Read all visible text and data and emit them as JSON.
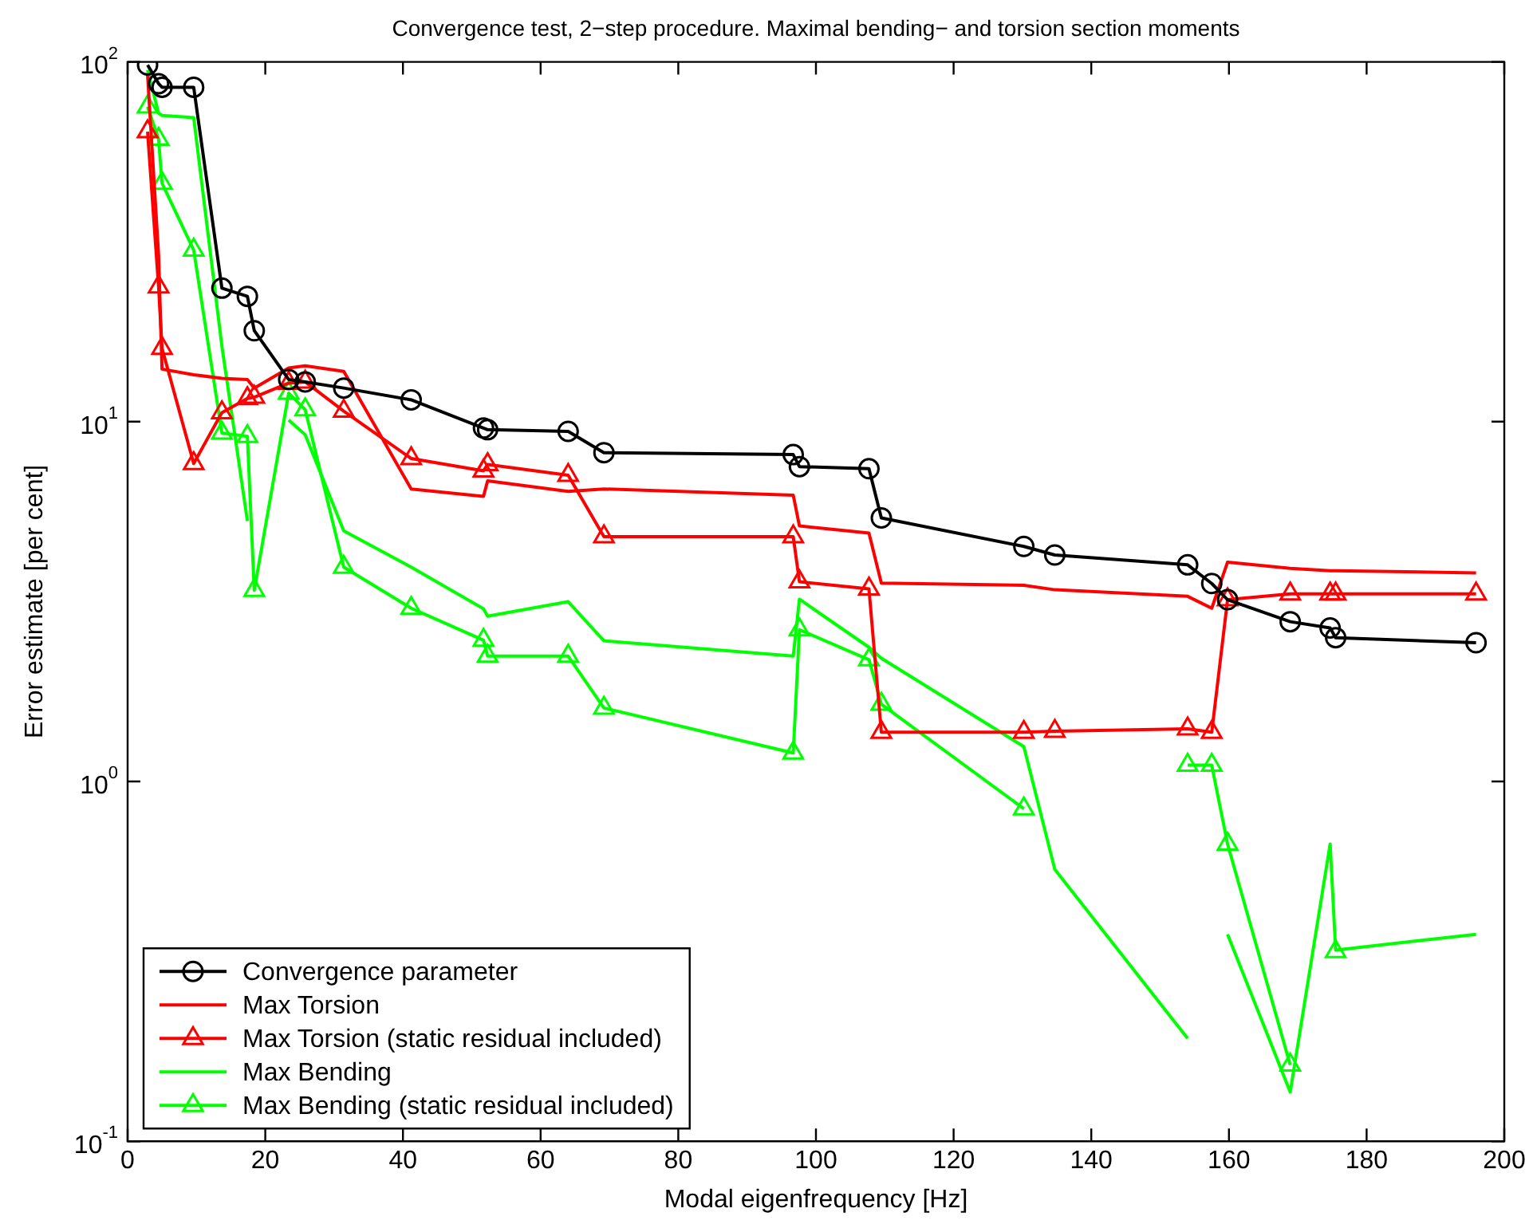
{
  "chart_data": {
    "type": "line",
    "title": "Convergence test, 2−step procedure. Maximal bending− and torsion section moments",
    "xlabel": "Modal eigenfrequency [Hz]",
    "ylabel": "Error estimate [per cent]",
    "x": [
      2.9,
      4.5,
      5.0,
      9.6,
      13.7,
      17.4,
      18.4,
      23.4,
      25.8,
      31.4,
      41.2,
      51.7,
      52.3,
      64.0,
      69.2,
      96.7,
      97.6,
      107.7,
      109.5,
      130.2,
      134.7,
      154.0,
      157.5,
      159.8,
      168.9,
      174.7,
      175.5,
      195.9
    ],
    "series": [
      {
        "name": "Convergence parameter",
        "color": "#000000",
        "marker": "circle",
        "values": [
          98,
          87,
          85,
          85,
          23.5,
          22.3,
          17.9,
          13.1,
          12.9,
          12.4,
          11.5,
          9.6,
          9.5,
          9.4,
          8.2,
          8.1,
          7.5,
          7.4,
          5.4,
          4.5,
          4.26,
          4.0,
          3.55,
          3.2,
          2.78,
          2.67,
          2.51,
          2.43
        ]
      },
      {
        "name": "Max Torsion",
        "color": "#ff0000",
        "marker": "none",
        "values": [
          92,
          29,
          14,
          13.5,
          13.2,
          13.1,
          12.4,
          14.1,
          14.3,
          13.8,
          6.5,
          6.2,
          6.85,
          6.4,
          6.5,
          6.25,
          5.13,
          4.9,
          3.56,
          3.51,
          3.41,
          3.27,
          3.03,
          4.07,
          3.91,
          3.85,
          3.85,
          3.8
        ]
      },
      {
        "name": "Max Torsion (static residual included)",
        "color": "#ff0000",
        "marker": "triangle",
        "values": [
          64,
          23.7,
          16,
          7.65,
          10.6,
          11.6,
          11.7,
          12.8,
          12.9,
          10.7,
          7.9,
          7.3,
          7.6,
          7.1,
          4.79,
          4.79,
          3.59,
          3.43,
          1.37,
          1.37,
          1.38,
          1.4,
          1.37,
          3.2,
          3.32,
          3.32,
          3.32,
          3.32
        ]
      },
      {
        "name": "Max Bending",
        "color": "#00ff00",
        "marker": "none",
        "values": [
          95,
          72,
          71,
          70,
          16.2,
          5.3,
          null,
          10.1,
          9.2,
          4.97,
          3.94,
          3.02,
          2.88,
          3.16,
          2.46,
          2.23,
          3.21,
          2.36,
          2.2,
          1.25,
          0.57,
          0.193,
          null,
          0.376,
          0.137,
          0.67,
          0.34,
          0.376
        ]
      },
      {
        "name": "Max Bending (static residual included)",
        "color": "#00ff00",
        "marker": "triangle",
        "values": [
          75,
          61,
          46,
          30,
          9.3,
          9.1,
          3.4,
          12,
          10.8,
          3.94,
          3.03,
          2.47,
          2.23,
          2.23,
          1.6,
          1.2,
          2.64,
          2.18,
          1.64,
          0.84,
          null,
          1.11,
          1.11,
          0.67,
          0.163,
          null,
          0.337,
          null
        ]
      }
    ],
    "xlim": [
      0,
      200
    ],
    "xticks": [
      0,
      20,
      40,
      60,
      80,
      100,
      120,
      140,
      160,
      180,
      200
    ],
    "ylim": [
      0.1,
      100
    ],
    "yticks": [
      {
        "value": 0.1,
        "label": "10$^{-1}$"
      },
      {
        "value": 1,
        "label": "10$^{0}$"
      },
      {
        "value": 10,
        "label": "10$^{1}$"
      },
      {
        "value": 100,
        "label": "10$^{2}$"
      }
    ],
    "log": "y",
    "legend": "bottom left",
    "line_style": "solid"
  }
}
